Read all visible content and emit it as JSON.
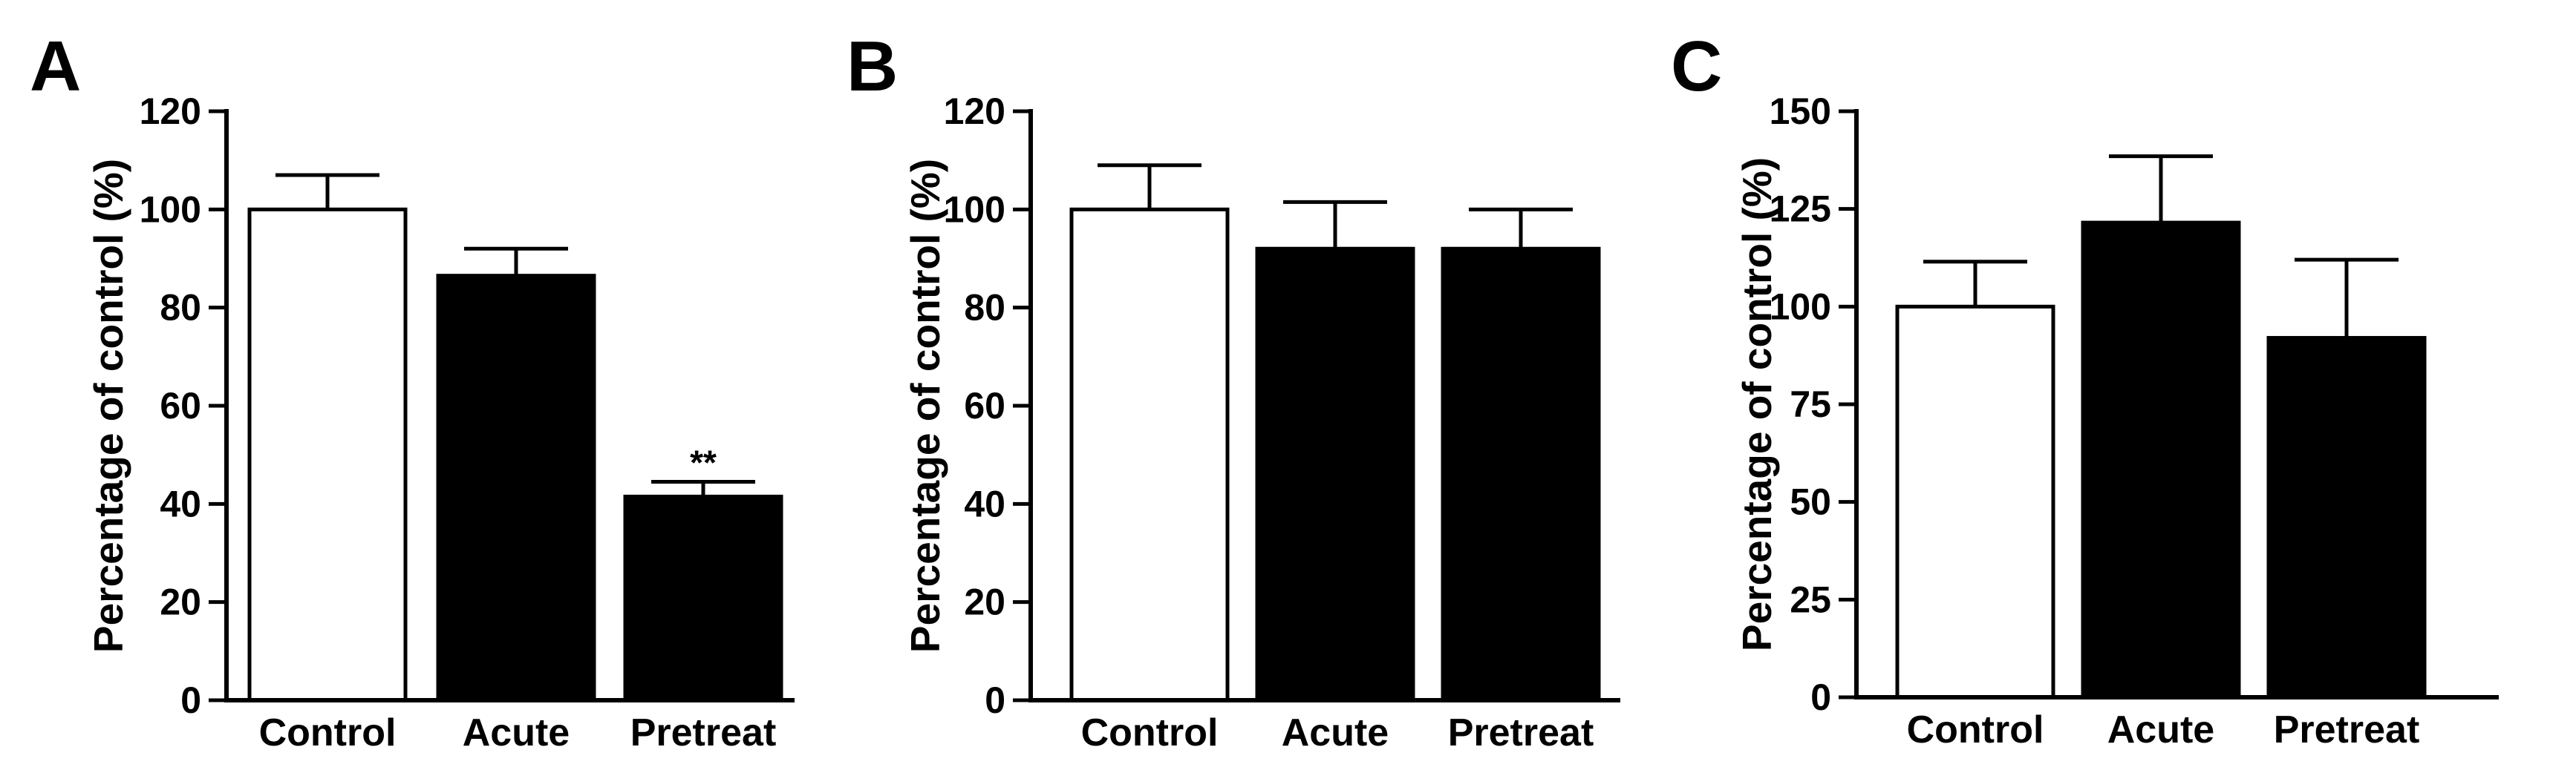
{
  "chart_data": [
    {
      "type": "bar",
      "panel_label": "A",
      "ylabel": "Percentage of control (%)",
      "xlabel": "",
      "categories": [
        "Control",
        "Acute",
        "Pretreat"
      ],
      "values": [
        100,
        86.5,
        41.5
      ],
      "errors": [
        7,
        5.5,
        3
      ],
      "fills": [
        "#ffffff",
        "#000000",
        "#000000"
      ],
      "annotations": [
        "",
        "",
        "**"
      ],
      "ylim": [
        0,
        120
      ],
      "yticks": [
        0,
        20,
        40,
        60,
        80,
        100,
        120
      ],
      "ytick_labels": [
        "0",
        "20",
        "40",
        "60",
        "80",
        "100",
        "120"
      ],
      "grid": false
    },
    {
      "type": "bar",
      "panel_label": "B",
      "ylabel": "Percentage of control (%)",
      "xlabel": "",
      "categories": [
        "Control",
        "Acute",
        "Pretreat"
      ],
      "values": [
        100,
        92,
        92
      ],
      "errors": [
        9,
        9.5,
        8
      ],
      "fills": [
        "#ffffff",
        "#000000",
        "#000000"
      ],
      "annotations": [
        "",
        "",
        ""
      ],
      "ylim": [
        0,
        120
      ],
      "yticks": [
        0,
        20,
        40,
        60,
        80,
        100,
        120
      ],
      "ytick_labels": [
        "0",
        "20",
        "40",
        "60",
        "80",
        "100",
        "120"
      ],
      "grid": false
    },
    {
      "type": "bar",
      "panel_label": "C",
      "ylabel": "Percentage of control (%)",
      "xlabel": "",
      "categories": [
        "Control",
        "Acute",
        "Pretreat"
      ],
      "values": [
        100,
        121.5,
        92
      ],
      "errors": [
        11.5,
        17,
        20
      ],
      "fills": [
        "#ffffff",
        "#000000",
        "#000000"
      ],
      "annotations": [
        "",
        "",
        ""
      ],
      "ylim": [
        0,
        150
      ],
      "yticks": [
        0,
        25,
        50,
        75,
        100,
        125,
        150
      ],
      "ytick_labels": [
        "0",
        "25",
        "50",
        "75",
        "100",
        "125",
        "150"
      ],
      "grid": false
    }
  ]
}
